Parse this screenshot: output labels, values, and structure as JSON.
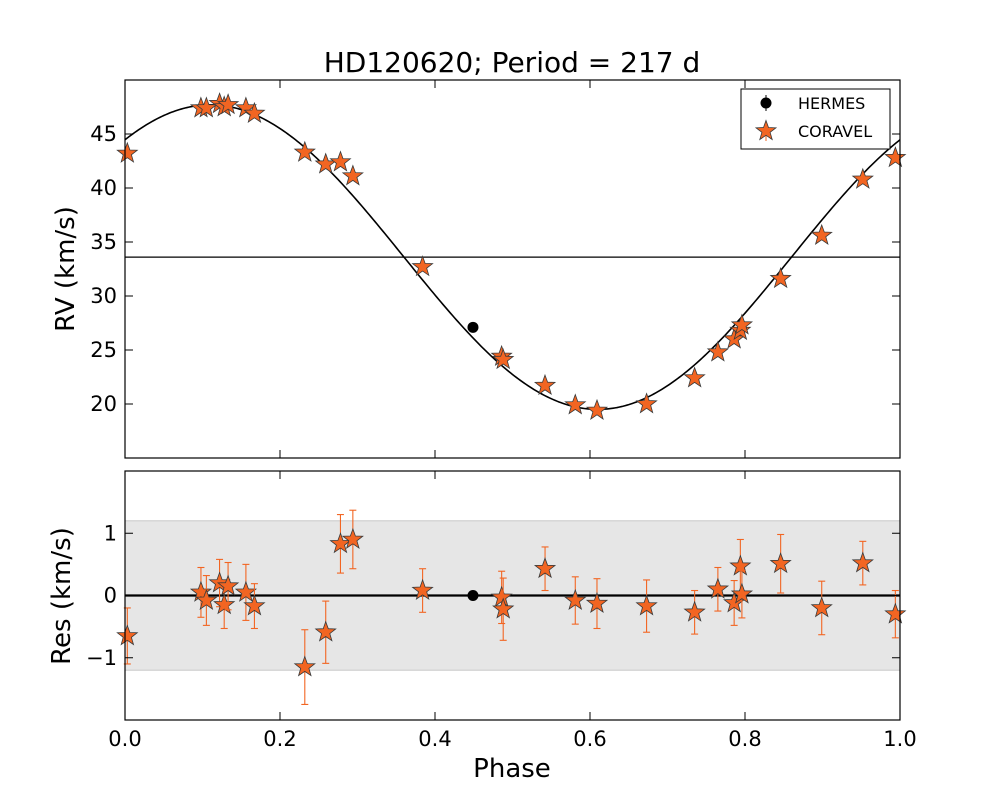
{
  "chart_data": {
    "type": "scatter",
    "title": "HD120620; Period = 217 d",
    "xlabel": "Phase",
    "xlim": [
      0.0,
      1.0
    ],
    "xticks": [
      "0.0",
      "0.2",
      "0.4",
      "0.6",
      "0.8",
      "1.0"
    ],
    "colors": {
      "coravel": "#f26522",
      "hermes": "#000000",
      "band": "#e6e6e6",
      "errorbar": "#f26522"
    },
    "legend": {
      "position": "top-right",
      "entries": [
        "HERMES",
        "CORAVEL"
      ]
    },
    "rv_panel": {
      "ylabel": "RV (km/s)",
      "ylim": [
        15,
        50
      ],
      "yticks": [
        "20",
        "25",
        "30",
        "35",
        "40",
        "45"
      ],
      "systemic_velocity": 33.6,
      "model": {
        "amplitude": 14.1,
        "phase_of_max": 0.11,
        "offset": 33.6
      },
      "coravel": {
        "phase": [
          0.003,
          0.098,
          0.105,
          0.122,
          0.128,
          0.133,
          0.156,
          0.167,
          0.232,
          0.259,
          0.278,
          0.294,
          0.384,
          0.486,
          0.488,
          0.542,
          0.581,
          0.609,
          0.673,
          0.735,
          0.765,
          0.786,
          0.794,
          0.796,
          0.846,
          0.899,
          0.952,
          0.994
        ],
        "rv": [
          43.2,
          47.4,
          47.4,
          47.8,
          47.5,
          47.7,
          47.4,
          46.9,
          43.3,
          42.2,
          42.4,
          41.1,
          32.7,
          24.4,
          24.1,
          21.7,
          19.9,
          19.4,
          20.0,
          22.4,
          24.8,
          26.0,
          26.8,
          27.3,
          31.6,
          35.6,
          40.8,
          42.8
        ]
      },
      "hermes": {
        "phase": [
          0.449
        ],
        "rv": [
          27.1
        ]
      }
    },
    "residual_panel": {
      "ylabel": "Res (km/s)",
      "ylim": [
        -2,
        2
      ],
      "yticks": [
        "1",
        "0",
        "−1"
      ],
      "band": [
        -1.2,
        1.2
      ],
      "coravel": {
        "phase": [
          0.003,
          0.098,
          0.105,
          0.122,
          0.128,
          0.133,
          0.156,
          0.167,
          0.232,
          0.259,
          0.278,
          0.294,
          0.384,
          0.486,
          0.488,
          0.542,
          0.581,
          0.609,
          0.673,
          0.735,
          0.765,
          0.786,
          0.794,
          0.796,
          0.846,
          0.899,
          0.952,
          0.994
        ],
        "res": [
          -0.65,
          0.05,
          -0.08,
          0.2,
          -0.15,
          0.15,
          0.05,
          -0.17,
          -1.15,
          -0.59,
          0.83,
          0.9,
          0.08,
          -0.03,
          -0.22,
          0.43,
          -0.08,
          -0.13,
          -0.17,
          -0.27,
          0.1,
          -0.12,
          0.47,
          0.02,
          0.51,
          -0.2,
          0.52,
          -0.3
        ],
        "err": [
          0.45,
          0.4,
          0.4,
          0.38,
          0.38,
          0.38,
          0.45,
          0.36,
          0.6,
          0.5,
          0.47,
          0.47,
          0.35,
          0.42,
          0.5,
          0.35,
          0.38,
          0.4,
          0.42,
          0.35,
          0.35,
          0.36,
          0.43,
          0.38,
          0.47,
          0.43,
          0.35,
          0.38
        ]
      },
      "hermes": {
        "phase": [
          0.449
        ],
        "res": [
          0.0
        ]
      }
    }
  }
}
